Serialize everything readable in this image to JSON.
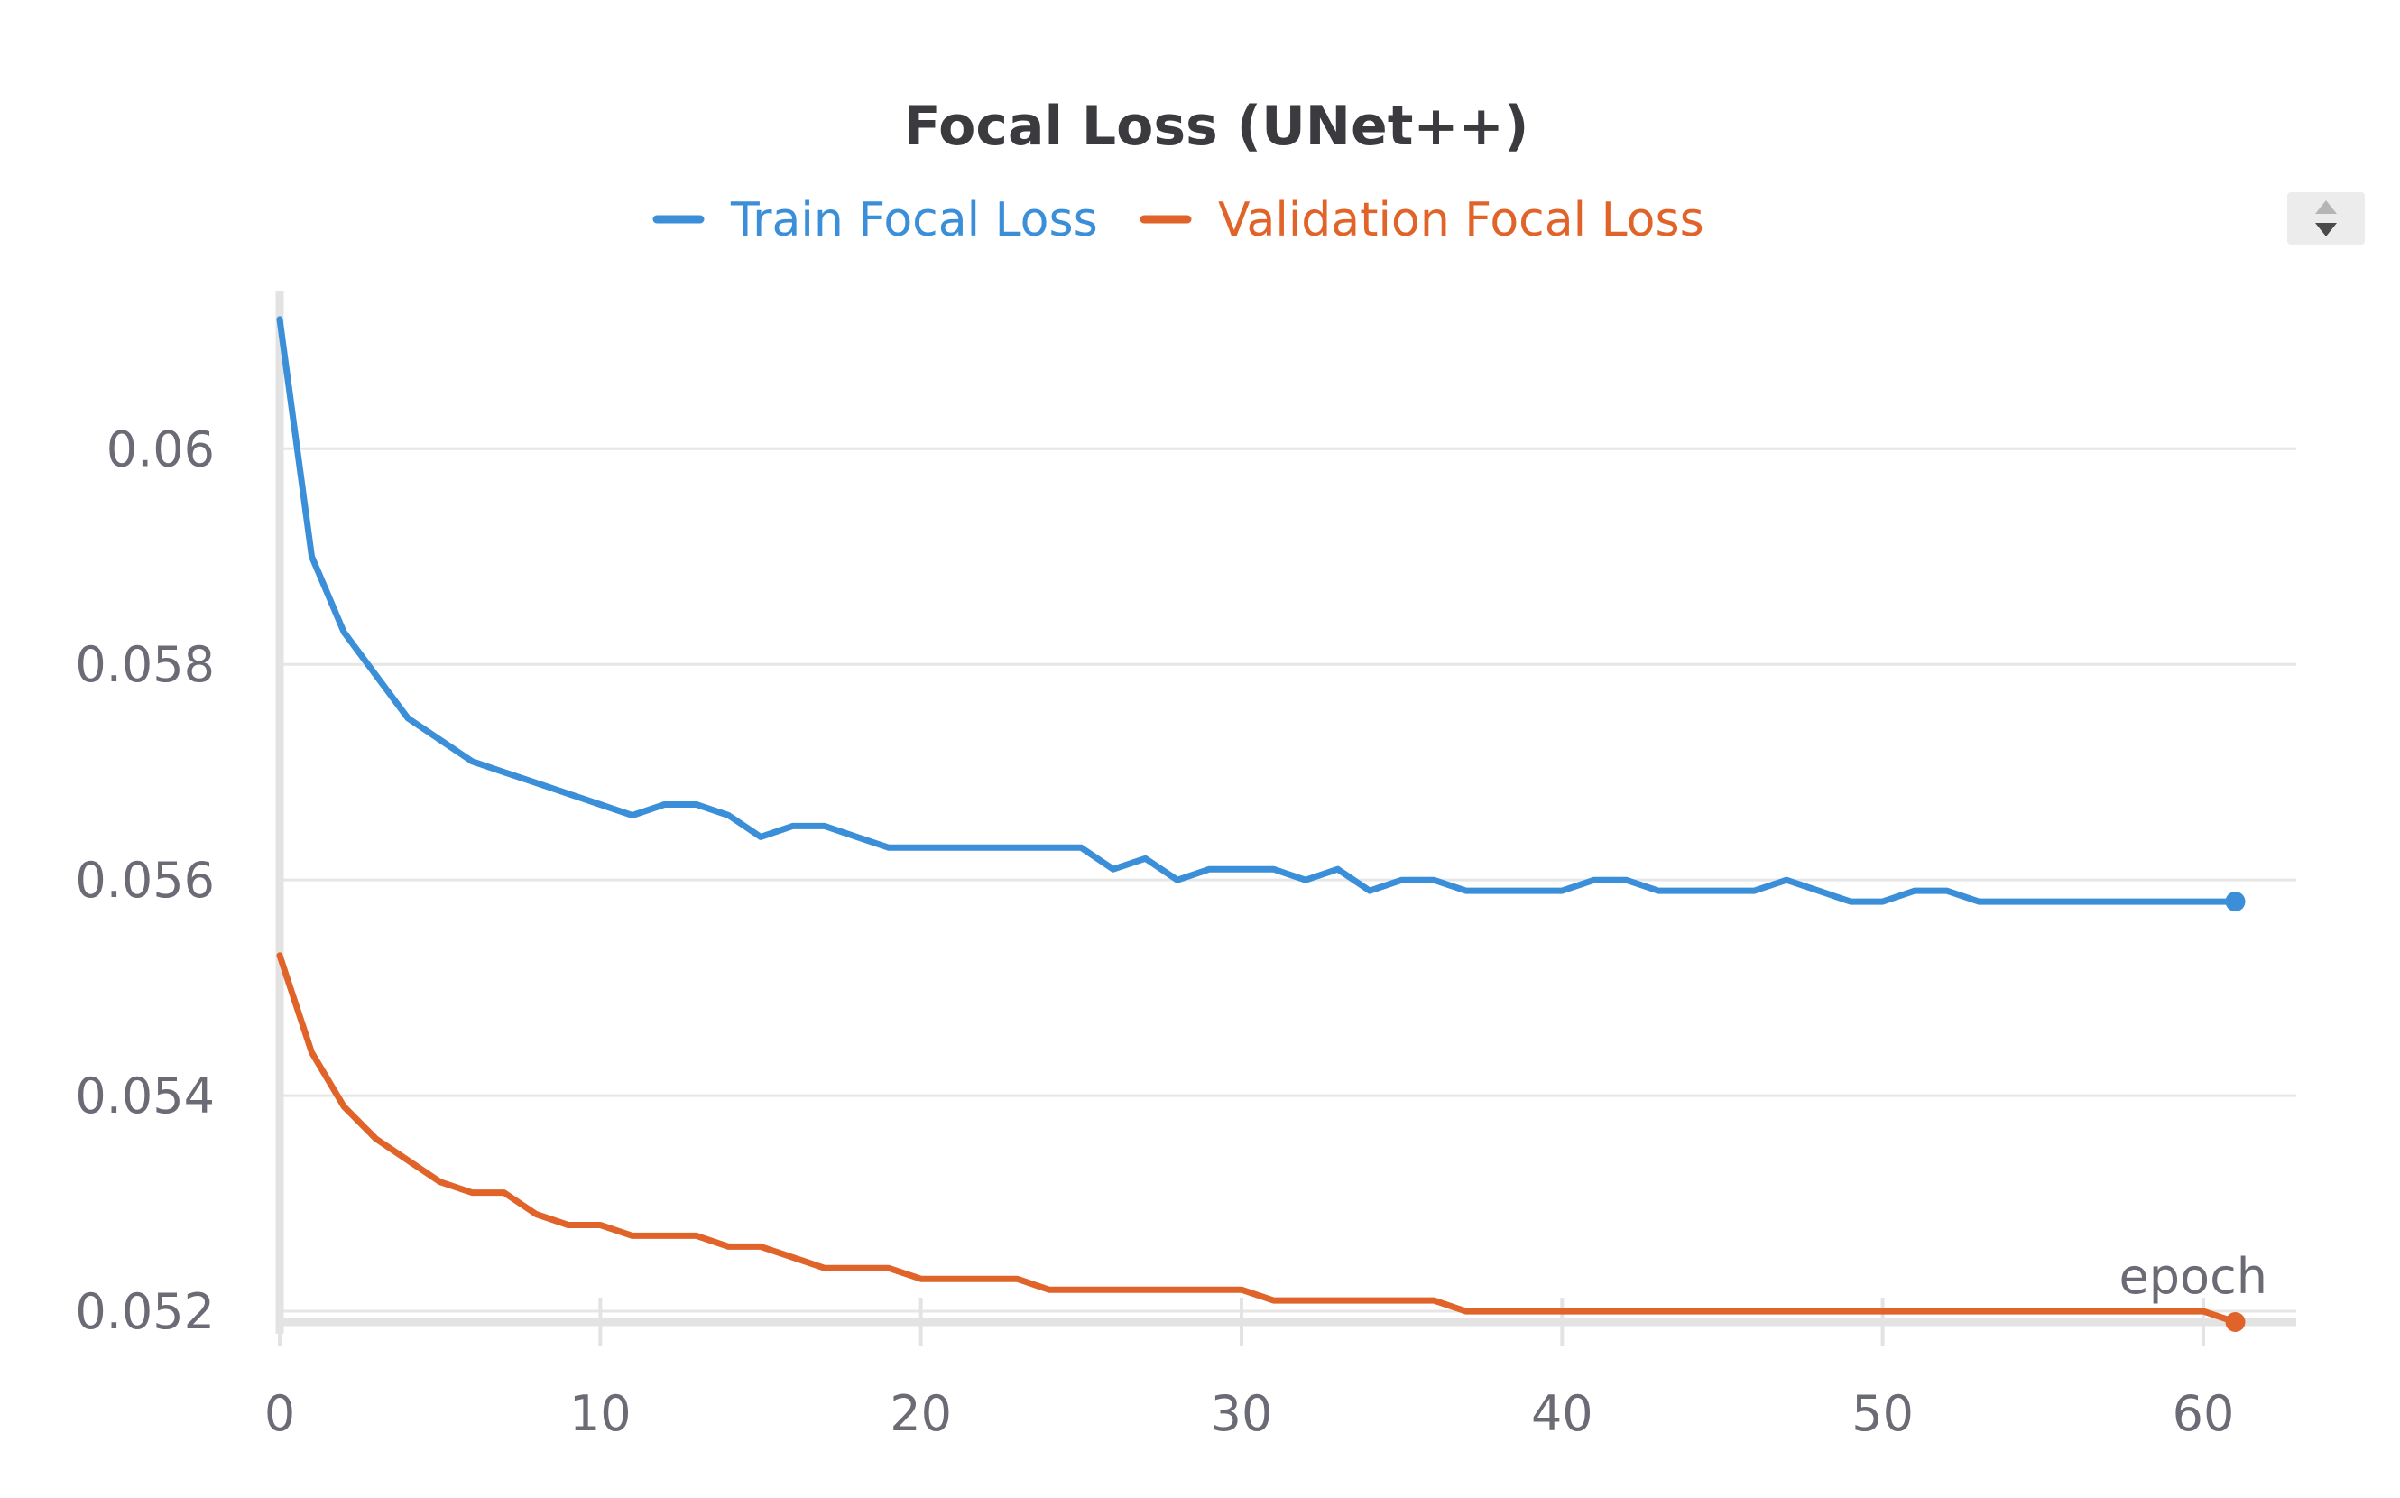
{
  "chart_data": {
    "type": "line",
    "title": "Focal Loss (UNet++)",
    "xlabel": "epoch",
    "ylabel": "",
    "xlim": [
      0,
      62.9
    ],
    "ylim": [
      0.0519,
      0.0614
    ],
    "x_ticks": [
      "0",
      "10",
      "20",
      "30",
      "40",
      "50",
      "60"
    ],
    "y_ticks": [
      "0.052",
      "0.054",
      "0.056",
      "0.058",
      "0.06"
    ],
    "x_tick_values": [
      0,
      10,
      20,
      30,
      40,
      50,
      60
    ],
    "y_tick_values": [
      0.052,
      0.054,
      0.056,
      0.058,
      0.06
    ],
    "grid": true,
    "legend_position": "top-center",
    "series": [
      {
        "name": "Train Focal Loss",
        "color": "#3b8ed8",
        "x": [
          0,
          1,
          2,
          3,
          4,
          5,
          6,
          7,
          8,
          9,
          10,
          11,
          12,
          13,
          14,
          15,
          16,
          17,
          18,
          19,
          20,
          21,
          22,
          23,
          24,
          25,
          26,
          27,
          28,
          29,
          30,
          31,
          32,
          33,
          34,
          35,
          36,
          37,
          38,
          39,
          40,
          41,
          42,
          43,
          44,
          45,
          46,
          47,
          48,
          49,
          50,
          51,
          52,
          53,
          54,
          55,
          56,
          57,
          58,
          59,
          60,
          61
        ],
        "values": [
          0.0612,
          0.059,
          0.0583,
          0.0579,
          0.0575,
          0.0573,
          0.0571,
          0.057,
          0.0569,
          0.0568,
          0.0567,
          0.0566,
          0.0567,
          0.0567,
          0.0566,
          0.0564,
          0.0565,
          0.0565,
          0.0564,
          0.0563,
          0.0563,
          0.0563,
          0.0563,
          0.0563,
          0.0563,
          0.0563,
          0.0561,
          0.0562,
          0.056,
          0.0561,
          0.0561,
          0.0561,
          0.056,
          0.0561,
          0.0559,
          0.056,
          0.056,
          0.0559,
          0.0559,
          0.0559,
          0.0559,
          0.056,
          0.056,
          0.0559,
          0.0559,
          0.0559,
          0.0559,
          0.056,
          0.0559,
          0.0558,
          0.0558,
          0.0559,
          0.0559,
          0.0558,
          0.0558,
          0.0558,
          0.0558,
          0.0558,
          0.0558,
          0.0558,
          0.0558,
          0.0558
        ]
      },
      {
        "name": "Validation Focal Loss",
        "color": "#e0642a",
        "x": [
          0,
          1,
          2,
          3,
          4,
          5,
          6,
          7,
          8,
          9,
          10,
          11,
          12,
          13,
          14,
          15,
          16,
          17,
          18,
          19,
          20,
          21,
          22,
          23,
          24,
          25,
          26,
          27,
          28,
          29,
          30,
          31,
          32,
          33,
          34,
          35,
          36,
          37,
          38,
          39,
          40,
          41,
          42,
          43,
          44,
          45,
          46,
          47,
          48,
          49,
          50,
          51,
          52,
          53,
          54,
          55,
          56,
          57,
          58,
          59,
          60,
          61
        ],
        "values": [
          0.0553,
          0.0544,
          0.0539,
          0.0536,
          0.0534,
          0.0532,
          0.0531,
          0.0531,
          0.0529,
          0.0528,
          0.0528,
          0.0527,
          0.0527,
          0.0527,
          0.0526,
          0.0526,
          0.0525,
          0.0524,
          0.0524,
          0.0524,
          0.0523,
          0.0523,
          0.0523,
          0.0523,
          0.0522,
          0.0522,
          0.0522,
          0.0522,
          0.0522,
          0.0522,
          0.0522,
          0.0521,
          0.0521,
          0.0521,
          0.0521,
          0.0521,
          0.0521,
          0.052,
          0.052,
          0.052,
          0.052,
          0.052,
          0.052,
          0.052,
          0.052,
          0.052,
          0.052,
          0.052,
          0.052,
          0.052,
          0.052,
          0.052,
          0.052,
          0.052,
          0.052,
          0.052,
          0.052,
          0.052,
          0.052,
          0.052,
          0.052,
          0.0519
        ]
      }
    ]
  },
  "colors": {
    "text": "#6b6b76",
    "title": "#3a3a3f",
    "grid": "#e6e6e6",
    "axis": "#e3e3e3"
  },
  "controls": {
    "sort_icon": "sort-up-down-icon"
  }
}
